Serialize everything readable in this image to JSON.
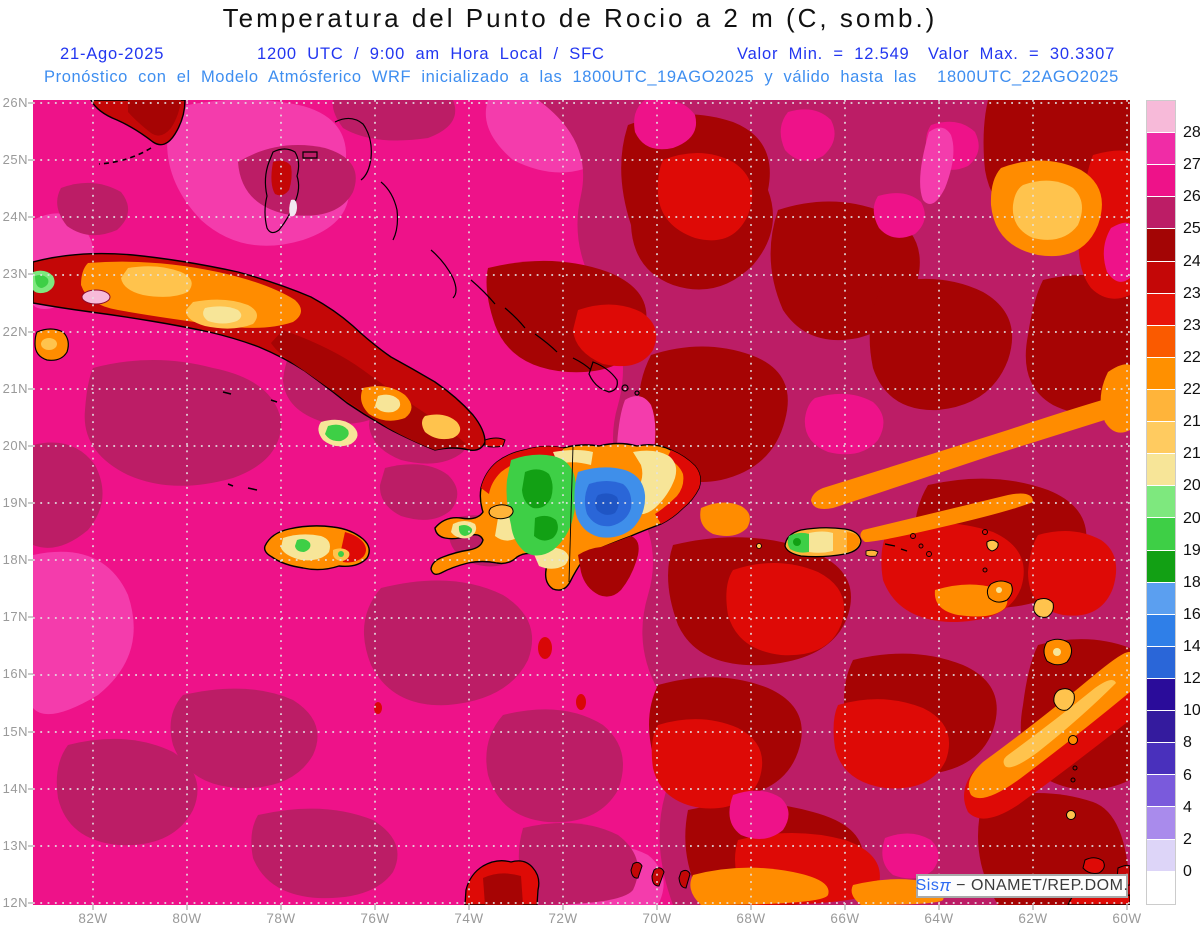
{
  "header": {
    "title": "Temperatura del Punto de Rocio a 2 m (C, somb.)",
    "date": "21-Ago-2025",
    "run_info": "1200 UTC / 9:00 am Hora Local / SFC",
    "min_value_label": "Valor Min. = 12.549",
    "max_value_label": "Valor Max. = 30.3307",
    "forecast_note": "Pronóstico con el Modelo Atmósferico WRF inicializado a las 1800UTC_19AGO2025 y válido hasta las  1800UTC_22AGO2025"
  },
  "map": {
    "lat_labels": [
      "26N",
      "25N",
      "24N",
      "23N",
      "22N",
      "21N",
      "20N",
      "19N",
      "18N",
      "17N",
      "16N",
      "15N",
      "14N",
      "13N",
      "12N"
    ],
    "lon_labels": [
      "82W",
      "80W",
      "78W",
      "76W",
      "74W",
      "72W",
      "70W",
      "68W",
      "66W",
      "64W",
      "62W",
      "60W"
    ]
  },
  "legend": {
    "labels": [
      "28",
      "27",
      "26",
      "25",
      "24.5",
      "23.5",
      "23",
      "22.5",
      "22",
      "21.5",
      "21",
      "20.5",
      "20",
      "19",
      "18",
      "16",
      "14",
      "12",
      "10",
      "8",
      "6",
      "4",
      "2",
      "0"
    ],
    "colors": [
      "#F7BAD9",
      "#F02CA6",
      "#EE1289",
      "#BC1D66",
      "#A30505",
      "#C40707",
      "#E8150A",
      "#FA5A00",
      "#FF9000",
      "#FFB43A",
      "#FFCB60",
      "#F7E598",
      "#7EE87E",
      "#3ECF46",
      "#12A014",
      "#5B9FF0",
      "#2F7FE8",
      "#2A66D8",
      "#2A0C9A",
      "#341B9E",
      "#4930BC",
      "#7A5ADC",
      "#A98BEC",
      "#DDD5F8",
      "#FFFFFF"
    ]
  },
  "watermark": {
    "brand": "Sis",
    "pi": "π",
    "separator": " − ",
    "org": "ONAMET/REP.DOM."
  },
  "colors": {
    "header_blue": "#2236F0",
    "forecast_blue": "#3E8EF0",
    "axis_gray": "#9A9A9A",
    "ocean_pink": "#EE1289",
    "ocean_dark_rose": "#BC1D66",
    "east_dark_red": "#A60404"
  }
}
